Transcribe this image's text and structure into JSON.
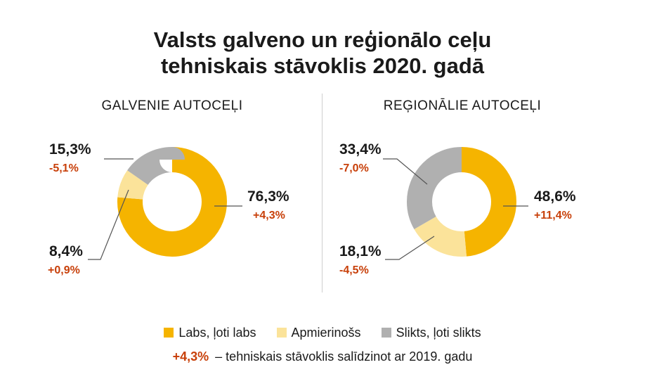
{
  "title_line1": "Valsts galveno un reģionālo ceļu",
  "title_line2": "tehniskais stāvoklis 2020. gadā",
  "colors": {
    "good": "#f5b400",
    "satisfactory": "#fbe39a",
    "bad": "#b0b0b0",
    "change": "#c8400a"
  },
  "legend": {
    "good": "Labs, ļoti labs",
    "satisfactory": "Apmierinošs",
    "bad": "Slikts, ļoti slikts",
    "note_change": "+4,3%",
    "note_text": "– tehniskais stāvoklis salīdzinot ar 2019. gadu"
  },
  "chart_data": [
    {
      "type": "pie",
      "subtitle": "GALVENIE AUTOCEĻI",
      "slices": [
        {
          "category": "Labs, ļoti labs",
          "value": 76.3,
          "label": "76,3%",
          "change": "+4,3%"
        },
        {
          "category": "Apmierinošs",
          "value": 8.4,
          "label": "8,4%",
          "change": "+0,9%"
        },
        {
          "category": "Slikts, ļoti slikts",
          "value": 15.3,
          "label": "15,3%",
          "change": "-5,1%"
        }
      ]
    },
    {
      "type": "pie",
      "subtitle": "REĢIONĀLIE AUTOCEĻI",
      "slices": [
        {
          "category": "Labs, ļoti labs",
          "value": 48.6,
          "label": "48,6%",
          "change": "+11,4%"
        },
        {
          "category": "Apmierinošs",
          "value": 18.1,
          "label": "18,1%",
          "change": "-4,5%"
        },
        {
          "category": "Slikts, ļoti slikts",
          "value": 33.4,
          "label": "33,4%",
          "change": "-7,0%"
        }
      ]
    }
  ]
}
